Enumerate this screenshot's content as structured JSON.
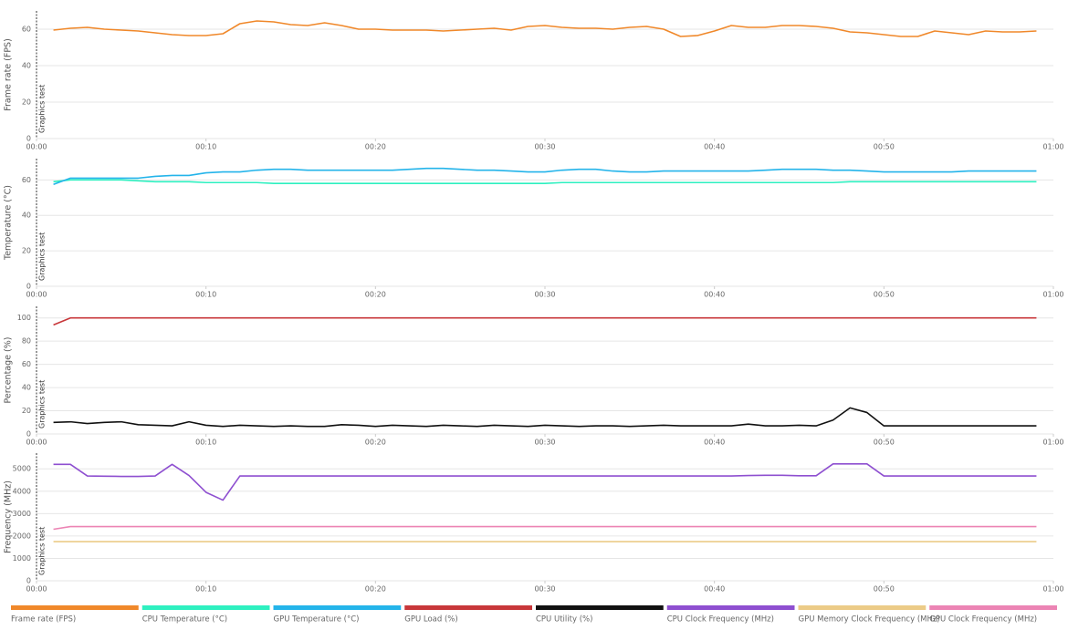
{
  "chart_data": [
    {
      "type": "line",
      "y_label": "Frame rate (FPS)",
      "annotation": "Graphics test",
      "x": [
        1,
        2,
        3,
        4,
        5,
        6,
        7,
        8,
        9,
        10,
        11,
        12,
        13,
        14,
        15,
        16,
        17,
        18,
        19,
        20,
        21,
        22,
        23,
        24,
        25,
        26,
        27,
        28,
        29,
        30,
        31,
        32,
        33,
        34,
        35,
        36,
        37,
        38,
        39,
        40,
        41,
        42,
        43,
        44,
        45,
        46,
        47,
        48,
        49,
        50,
        51,
        52,
        53,
        54,
        55,
        56,
        57,
        58,
        59
      ],
      "xlim": [
        0,
        60
      ],
      "xticks": [
        {
          "value": 0,
          "label": "00:00"
        },
        {
          "value": 10,
          "label": "00:10"
        },
        {
          "value": 20,
          "label": "00:20"
        },
        {
          "value": 30,
          "label": "00:30"
        },
        {
          "value": 40,
          "label": "00:40"
        },
        {
          "value": 50,
          "label": "00:50"
        },
        {
          "value": 60,
          "label": "01:00"
        }
      ],
      "ylim": [
        0,
        70
      ],
      "yticks": [
        0,
        20,
        40,
        60
      ],
      "grid": true,
      "series": [
        {
          "name": "Frame rate (FPS)",
          "color": "#f0882a",
          "values": [
            59.5,
            60.5,
            61,
            60,
            59.5,
            59,
            58,
            57,
            56.5,
            56.5,
            57.5,
            63,
            64.5,
            64,
            62.5,
            62,
            63.5,
            62,
            60,
            60,
            59.5,
            59.5,
            59.5,
            59,
            59.5,
            60,
            60.5,
            59.5,
            61.5,
            62,
            61,
            60.5,
            60.5,
            60,
            61,
            61.5,
            60,
            56,
            56.5,
            59,
            62,
            61,
            61,
            62,
            62,
            61.5,
            60.5,
            58.5,
            58,
            57,
            56,
            56,
            59,
            58,
            57,
            59,
            58.5,
            58.5,
            59
          ]
        }
      ]
    },
    {
      "type": "line",
      "y_label": "Temperature (°C)",
      "annotation": "Graphics test",
      "x": [
        1,
        2,
        3,
        4,
        5,
        6,
        7,
        8,
        9,
        10,
        11,
        12,
        13,
        14,
        15,
        16,
        17,
        18,
        19,
        20,
        21,
        22,
        23,
        24,
        25,
        26,
        27,
        28,
        29,
        30,
        31,
        32,
        33,
        34,
        35,
        36,
        37,
        38,
        39,
        40,
        41,
        42,
        43,
        44,
        45,
        46,
        47,
        48,
        49,
        50,
        51,
        52,
        53,
        54,
        55,
        56,
        57,
        58,
        59
      ],
      "xlim": [
        0,
        60
      ],
      "xticks": [
        {
          "value": 0,
          "label": "00:00"
        },
        {
          "value": 10,
          "label": "00:10"
        },
        {
          "value": 20,
          "label": "00:20"
        },
        {
          "value": 30,
          "label": "00:30"
        },
        {
          "value": 40,
          "label": "00:40"
        },
        {
          "value": 50,
          "label": "00:50"
        },
        {
          "value": 60,
          "label": "01:00"
        }
      ],
      "ylim": [
        0,
        72
      ],
      "yticks": [
        0,
        20,
        40,
        60
      ],
      "grid": true,
      "series": [
        {
          "name": "CPU Temperature (°C)",
          "color": "#2ef0c0",
          "values": [
            59,
            60,
            60,
            60,
            60,
            59.5,
            59,
            59,
            59,
            58.5,
            58.5,
            58.5,
            58.5,
            58,
            58,
            58,
            58,
            58,
            58,
            58,
            58,
            58,
            58,
            58,
            58,
            58,
            58,
            58,
            58,
            58,
            58.5,
            58.5,
            58.5,
            58.5,
            58.5,
            58.5,
            58.5,
            58.5,
            58.5,
            58.5,
            58.5,
            58.5,
            58.5,
            58.5,
            58.5,
            58.5,
            58.5,
            59,
            59,
            59,
            59,
            59,
            59,
            59,
            59,
            59,
            59,
            59,
            59
          ]
        },
        {
          "name": "GPU Temperature (°C)",
          "color": "#24b4ea",
          "values": [
            57.5,
            61,
            61,
            61,
            61,
            61,
            62,
            62.5,
            62.5,
            64,
            64.5,
            64.5,
            65.5,
            66,
            66,
            65.5,
            65.5,
            65.5,
            65.5,
            65.5,
            65.5,
            66,
            66.5,
            66.5,
            66,
            65.5,
            65.5,
            65,
            64.5,
            64.5,
            65.5,
            66,
            66,
            65,
            64.5,
            64.5,
            65,
            65,
            65,
            65,
            65,
            65,
            65.5,
            66,
            66,
            66,
            65.5,
            65.5,
            65,
            64.5,
            64.5,
            64.5,
            64.5,
            64.5,
            65,
            65,
            65,
            65,
            65
          ]
        }
      ]
    },
    {
      "type": "line",
      "y_label": "Percentage (%)",
      "annotation": "Graphics test",
      "x": [
        1,
        2,
        3,
        4,
        5,
        6,
        7,
        8,
        9,
        10,
        11,
        12,
        13,
        14,
        15,
        16,
        17,
        18,
        19,
        20,
        21,
        22,
        23,
        24,
        25,
        26,
        27,
        28,
        29,
        30,
        31,
        32,
        33,
        34,
        35,
        36,
        37,
        38,
        39,
        40,
        41,
        42,
        43,
        44,
        45,
        46,
        47,
        48,
        49,
        50,
        51,
        52,
        53,
        54,
        55,
        56,
        57,
        58,
        59
      ],
      "xlim": [
        0,
        60
      ],
      "xticks": [
        {
          "value": 0,
          "label": "00:00"
        },
        {
          "value": 10,
          "label": "00:10"
        },
        {
          "value": 20,
          "label": "00:20"
        },
        {
          "value": 30,
          "label": "00:30"
        },
        {
          "value": 40,
          "label": "00:40"
        },
        {
          "value": 50,
          "label": "00:50"
        },
        {
          "value": 60,
          "label": "01:00"
        }
      ],
      "ylim": [
        0,
        110
      ],
      "yticks": [
        0,
        20,
        40,
        60,
        80,
        100
      ],
      "grid": true,
      "series": [
        {
          "name": "GPU Load (%)",
          "color": "#c8373a",
          "values": [
            94,
            100,
            100,
            100,
            100,
            100,
            100,
            100,
            100,
            100,
            100,
            100,
            100,
            100,
            100,
            100,
            100,
            100,
            100,
            100,
            100,
            100,
            100,
            100,
            100,
            100,
            100,
            100,
            100,
            100,
            100,
            100,
            100,
            100,
            100,
            100,
            100,
            100,
            100,
            100,
            100,
            100,
            100,
            100,
            100,
            100,
            100,
            100,
            100,
            100,
            100,
            100,
            100,
            100,
            100,
            100,
            100,
            100,
            100
          ]
        },
        {
          "name": "CPU Utility (%)",
          "color": "#111111",
          "values": [
            10,
            10.5,
            9,
            10,
            10.5,
            8,
            7.5,
            7,
            10.5,
            7.5,
            6.5,
            7.5,
            7,
            6.5,
            7,
            6.5,
            6.5,
            8,
            7.5,
            6.5,
            7.5,
            7,
            6.5,
            7.5,
            7,
            6.5,
            7.5,
            7,
            6.5,
            7.5,
            7,
            6.5,
            7,
            7,
            6.5,
            7,
            7.5,
            7,
            7,
            7,
            7,
            8.5,
            7,
            7,
            7.5,
            7,
            12,
            22.5,
            18.5,
            7,
            7,
            7,
            7,
            7,
            7,
            7,
            7,
            7,
            7
          ]
        }
      ]
    },
    {
      "type": "line",
      "y_label": "Frequency (MHz)",
      "annotation": "Graphics test",
      "x": [
        1,
        2,
        3,
        4,
        5,
        6,
        7,
        8,
        9,
        10,
        11,
        12,
        13,
        14,
        15,
        16,
        17,
        18,
        19,
        20,
        21,
        22,
        23,
        24,
        25,
        26,
        27,
        28,
        29,
        30,
        31,
        32,
        33,
        34,
        35,
        36,
        37,
        38,
        39,
        40,
        41,
        42,
        43,
        44,
        45,
        46,
        47,
        48,
        49,
        50,
        51,
        52,
        53,
        54,
        55,
        56,
        57,
        58,
        59
      ],
      "xlim": [
        0,
        60
      ],
      "xticks": [
        {
          "value": 0,
          "label": "00:00"
        },
        {
          "value": 10,
          "label": "00:10"
        },
        {
          "value": 20,
          "label": "00:20"
        },
        {
          "value": 30,
          "label": "00:30"
        },
        {
          "value": 40,
          "label": "00:40"
        },
        {
          "value": 50,
          "label": "00:50"
        },
        {
          "value": 60,
          "label": "01:00"
        }
      ],
      "ylim": [
        0,
        5700
      ],
      "yticks": [
        0,
        1000,
        2000,
        3000,
        4000,
        5000
      ],
      "grid": true,
      "series": [
        {
          "name": "CPU Clock Frequency (MHz)",
          "color": "#8e4fd0",
          "values": [
            5200,
            5200,
            4680,
            4670,
            4660,
            4660,
            4680,
            5200,
            4700,
            3950,
            3600,
            4680,
            4680,
            4680,
            4680,
            4680,
            4680,
            4680,
            4680,
            4680,
            4680,
            4680,
            4680,
            4680,
            4680,
            4680,
            4680,
            4680,
            4680,
            4680,
            4680,
            4680,
            4680,
            4680,
            4680,
            4680,
            4680,
            4680,
            4680,
            4680,
            4680,
            4700,
            4710,
            4710,
            4690,
            4690,
            5220,
            5220,
            5220,
            4680,
            4680,
            4680,
            4680,
            4680,
            4680,
            4680,
            4680,
            4680,
            4680
          ]
        },
        {
          "name": "GPU Memory Clock Frequency (MHz)",
          "color": "#eccb87",
          "values": [
            1750,
            1750,
            1750,
            1750,
            1750,
            1750,
            1750,
            1750,
            1750,
            1750,
            1750,
            1750,
            1750,
            1750,
            1750,
            1750,
            1750,
            1750,
            1750,
            1750,
            1750,
            1750,
            1750,
            1750,
            1750,
            1750,
            1750,
            1750,
            1750,
            1750,
            1750,
            1750,
            1750,
            1750,
            1750,
            1750,
            1750,
            1750,
            1750,
            1750,
            1750,
            1750,
            1750,
            1750,
            1750,
            1750,
            1750,
            1750,
            1750,
            1750,
            1750,
            1750,
            1750,
            1750,
            1750,
            1750,
            1750,
            1750,
            1750
          ]
        },
        {
          "name": "GPU Clock Frequency (MHz)",
          "color": "#ec84b4",
          "values": [
            2300,
            2420,
            2420,
            2420,
            2420,
            2420,
            2420,
            2420,
            2420,
            2420,
            2420,
            2420,
            2420,
            2420,
            2420,
            2420,
            2420,
            2420,
            2420,
            2420,
            2420,
            2420,
            2420,
            2420,
            2420,
            2420,
            2420,
            2420,
            2420,
            2420,
            2420,
            2420,
            2420,
            2420,
            2420,
            2420,
            2420,
            2420,
            2420,
            2420,
            2420,
            2420,
            2420,
            2420,
            2420,
            2420,
            2420,
            2420,
            2420,
            2420,
            2420,
            2420,
            2420,
            2420,
            2420,
            2420,
            2420,
            2420,
            2420
          ]
        }
      ]
    }
  ]
}
